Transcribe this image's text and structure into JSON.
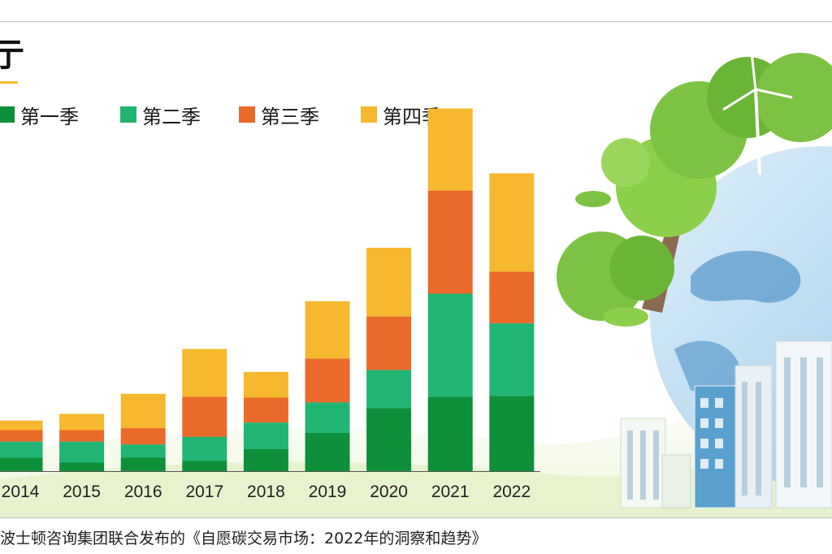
{
  "title_fragment": "亍",
  "legend": [
    {
      "label": "第一季",
      "color": "#0e8f3a"
    },
    {
      "label": "第二季",
      "color": "#21b573"
    },
    {
      "label": "第三季",
      "color": "#ea6a2a"
    },
    {
      "label": "第四季",
      "color": "#f5b82e"
    }
  ],
  "chart_data": {
    "type": "bar",
    "stacked": true,
    "categories": [
      "2014",
      "2015",
      "2016",
      "2017",
      "2018",
      "2019",
      "2020",
      "2021",
      "2022"
    ],
    "series": [
      {
        "name": "第一季",
        "values": [
          14,
          9,
          14,
          11,
          23,
          40,
          66,
          78,
          79
        ],
        "color": "#0e8f3a"
      },
      {
        "name": "第二季",
        "values": [
          17,
          22,
          14,
          25,
          28,
          32,
          40,
          108,
          76
        ],
        "color": "#21b573"
      },
      {
        "name": "第三季",
        "values": [
          12,
          12,
          17,
          42,
          26,
          46,
          56,
          108,
          54
        ],
        "color": "#ea6a2a"
      },
      {
        "name": "第四季",
        "values": [
          10,
          17,
          36,
          50,
          27,
          60,
          72,
          86,
          103
        ],
        "color": "#f5b82e"
      }
    ],
    "ylim": [
      0,
      400
    ],
    "grid": false,
    "legend_position": "top-left"
  },
  "source_text": "波士顿咨询集团联合发布的《自愿碳交易市场：2022年的洞察和趋势》"
}
